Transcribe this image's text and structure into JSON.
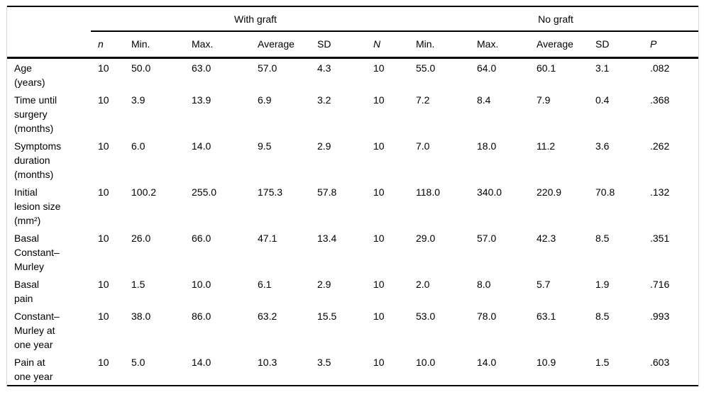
{
  "table": {
    "groups": [
      {
        "label": "With graft"
      },
      {
        "label": "No graft"
      }
    ],
    "columns": [
      "n",
      "Min.",
      "Max.",
      "Average",
      "SD",
      "N",
      "Min.",
      "Max.",
      "Average",
      "SD",
      "P"
    ],
    "rows": [
      {
        "label": "Age\n(years)",
        "values": [
          "10",
          "50.0",
          "63.0",
          "57.0",
          "4.3",
          "10",
          "55.0",
          "64.0",
          "60.1",
          "3.1",
          ".082"
        ]
      },
      {
        "label": "Time until\nsurgery\n(months)",
        "values": [
          "10",
          "3.9",
          "13.9",
          "6.9",
          "3.2",
          "10",
          "7.2",
          "8.4",
          "7.9",
          "0.4",
          ".368"
        ]
      },
      {
        "label": "Symptoms\nduration\n(months)",
        "values": [
          "10",
          "6.0",
          "14.0",
          "9.5",
          "2.9",
          "10",
          "7.0",
          "18.0",
          "11.2",
          "3.6",
          ".262"
        ]
      },
      {
        "label": "Initial\nlesion size\n(mm²)",
        "values": [
          "10",
          "100.2",
          "255.0",
          "175.3",
          "57.8",
          "10",
          "118.0",
          "340.0",
          "220.9",
          "70.8",
          ".132"
        ]
      },
      {
        "label": "Basal\nConstant–\nMurley",
        "values": [
          "10",
          "26.0",
          "66.0",
          "47.1",
          "13.4",
          "10",
          "29.0",
          "57.0",
          "42.3",
          "8.5",
          ".351"
        ]
      },
      {
        "label": "Basal\npain",
        "values": [
          "10",
          "1.5",
          "10.0",
          "6.1",
          "2.9",
          "10",
          "2.0",
          "8.0",
          "5.7",
          "1.9",
          ".716"
        ]
      },
      {
        "label": "Constant–\nMurley at\none year",
        "values": [
          "10",
          "38.0",
          "86.0",
          "63.2",
          "15.5",
          "10",
          "53.0",
          "78.0",
          "63.1",
          "8.5",
          ".993"
        ]
      },
      {
        "label": "Pain at\none year",
        "values": [
          "10",
          "5.0",
          "14.0",
          "10.3",
          "3.5",
          "10",
          "10.0",
          "14.0",
          "10.9",
          "1.5",
          ".603"
        ]
      }
    ]
  },
  "chart_data": {
    "type": "table",
    "column_groups": [
      {
        "label": "With graft",
        "columns": [
          "n",
          "Min.",
          "Max.",
          "Average",
          "SD"
        ]
      },
      {
        "label": "No graft",
        "columns": [
          "N",
          "Min.",
          "Max.",
          "Average",
          "SD"
        ]
      }
    ],
    "extra_column": "P",
    "rows": [
      {
        "variable": "Age (years)",
        "with_graft": {
          "n": 10,
          "min": 50.0,
          "max": 63.0,
          "average": 57.0,
          "sd": 4.3
        },
        "no_graft": {
          "n": 10,
          "min": 55.0,
          "max": 64.0,
          "average": 60.1,
          "sd": 3.1
        },
        "p": 0.082
      },
      {
        "variable": "Time until surgery (months)",
        "with_graft": {
          "n": 10,
          "min": 3.9,
          "max": 13.9,
          "average": 6.9,
          "sd": 3.2
        },
        "no_graft": {
          "n": 10,
          "min": 7.2,
          "max": 8.4,
          "average": 7.9,
          "sd": 0.4
        },
        "p": 0.368
      },
      {
        "variable": "Symptoms duration (months)",
        "with_graft": {
          "n": 10,
          "min": 6.0,
          "max": 14.0,
          "average": 9.5,
          "sd": 2.9
        },
        "no_graft": {
          "n": 10,
          "min": 7.0,
          "max": 18.0,
          "average": 11.2,
          "sd": 3.6
        },
        "p": 0.262
      },
      {
        "variable": "Initial lesion size (mm²)",
        "with_graft": {
          "n": 10,
          "min": 100.2,
          "max": 255.0,
          "average": 175.3,
          "sd": 57.8
        },
        "no_graft": {
          "n": 10,
          "min": 118.0,
          "max": 340.0,
          "average": 220.9,
          "sd": 70.8
        },
        "p": 0.132
      },
      {
        "variable": "Basal Constant–Murley",
        "with_graft": {
          "n": 10,
          "min": 26.0,
          "max": 66.0,
          "average": 47.1,
          "sd": 13.4
        },
        "no_graft": {
          "n": 10,
          "min": 29.0,
          "max": 57.0,
          "average": 42.3,
          "sd": 8.5
        },
        "p": 0.351
      },
      {
        "variable": "Basal pain",
        "with_graft": {
          "n": 10,
          "min": 1.5,
          "max": 10.0,
          "average": 6.1,
          "sd": 2.9
        },
        "no_graft": {
          "n": 10,
          "min": 2.0,
          "max": 8.0,
          "average": 5.7,
          "sd": 1.9
        },
        "p": 0.716
      },
      {
        "variable": "Constant–Murley at one year",
        "with_graft": {
          "n": 10,
          "min": 38.0,
          "max": 86.0,
          "average": 63.2,
          "sd": 15.5
        },
        "no_graft": {
          "n": 10,
          "min": 53.0,
          "max": 78.0,
          "average": 63.1,
          "sd": 8.5
        },
        "p": 0.993
      },
      {
        "variable": "Pain at one year",
        "with_graft": {
          "n": 10,
          "min": 5.0,
          "max": 14.0,
          "average": 10.3,
          "sd": 3.5
        },
        "no_graft": {
          "n": 10,
          "min": 10.0,
          "max": 14.0,
          "average": 10.9,
          "sd": 1.5
        },
        "p": 0.603
      }
    ]
  }
}
